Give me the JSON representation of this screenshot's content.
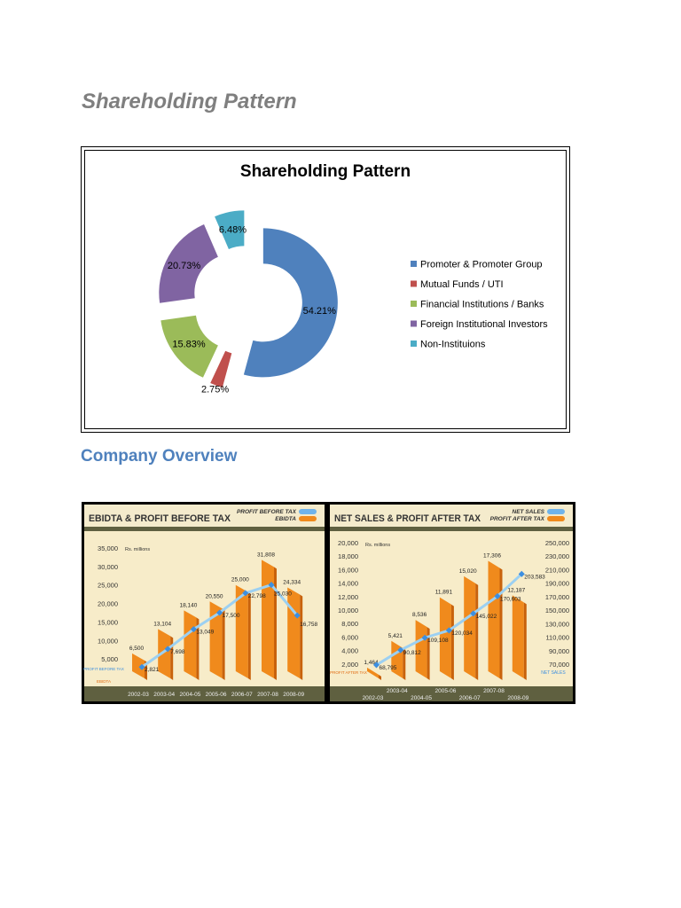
{
  "page": {
    "heading": "Shareholding Pattern",
    "section_heading": "Company Overview"
  },
  "chart_data": [
    {
      "type": "pie",
      "variant": "exploded-donut",
      "title": "Shareholding Pattern",
      "legend_position": "right",
      "categories": [
        "Promoter & Promoter Group",
        "Mutual Funds / UTI",
        "Financial Institutions / Banks",
        "Foreign Institutional Investors",
        "Non-Instituions"
      ],
      "values": [
        54.21,
        2.75,
        15.83,
        20.73,
        6.48
      ],
      "labels": [
        "54.21%",
        "2.75%",
        "15.83%",
        "20.73%",
        "6.48%"
      ],
      "colors": [
        "#4f81bd",
        "#c0504d",
        "#9bbb59",
        "#8064a2",
        "#4bacc6"
      ]
    },
    {
      "type": "bar",
      "title": "EBIDTA & PROFIT BEFORE TAX",
      "unit_note": "Rs. millions",
      "categories": [
        "2002-03",
        "2003-04",
        "2004-05",
        "2005-06",
        "2006-07",
        "2007-08",
        "2008-09"
      ],
      "y_ticks": [
        "35,000",
        "30,000",
        "25,000",
        "20,000",
        "15,000",
        "10,000",
        "5,000"
      ],
      "ylim": [
        0,
        35000
      ],
      "legend_position": "top-right",
      "axis_series_labels": {
        "line": "PROFIT BEFORE TAX",
        "bar": "EBIDTA"
      },
      "series": [
        {
          "name": "EBIDTA",
          "kind": "bar",
          "color": "#f08a1c",
          "values": [
            6500,
            13104,
            18140,
            20550,
            25000,
            31808,
            24334
          ],
          "labels": [
            "6,500",
            "13,104",
            "18,140",
            "20,550",
            "25,000",
            "31,808",
            "24,334"
          ]
        },
        {
          "name": "PROFIT BEFORE TAX",
          "kind": "line",
          "color": "#6fb3ea",
          "values": [
            2821,
            7698,
            13049,
            17500,
            22798,
            25030,
            16758
          ],
          "labels": [
            "2,821",
            "7,698",
            "13,049",
            "17,500",
            "22,798",
            "25,030",
            "16,758"
          ]
        }
      ]
    },
    {
      "type": "bar",
      "title": "NET SALES & PROFIT AFTER TAX",
      "unit_note": "Rs. millions",
      "categories": [
        "2002-03",
        "2003-04",
        "2004-05",
        "2005-06",
        "2006-07",
        "2007-08",
        "2008-09"
      ],
      "y_ticks": [
        "20,000",
        "18,000",
        "16,000",
        "14,000",
        "12,000",
        "10,000",
        "8,000",
        "6,000",
        "4,000",
        "2,000"
      ],
      "y2_ticks": [
        "250,000",
        "230,000",
        "210,000",
        "190,000",
        "170,000",
        "150,000",
        "130,000",
        "110,000",
        "90,000",
        "70,000"
      ],
      "ylim": [
        0,
        20000
      ],
      "y2lim": [
        70000,
        250000
      ],
      "legend_position": "top-right",
      "axis_series_labels": {
        "line": "NET SALES",
        "bar": "PROFIT AFTER TAX"
      },
      "series": [
        {
          "name": "PROFIT AFTER TAX",
          "kind": "bar",
          "color": "#f08a1c",
          "values": [
            1464,
            5421,
            8536,
            11891,
            15020,
            17306,
            12187
          ],
          "labels": [
            "1,464",
            "5,421",
            "8,536",
            "11,891",
            "15,020",
            "17,306",
            "12,187"
          ]
        },
        {
          "name": "NET SALES",
          "kind": "line",
          "axis": "right",
          "color": "#6fb3ea",
          "values": [
            68795,
            90812,
            109108,
            120034,
            145022,
            170603,
            203583
          ],
          "labels": [
            "68,795",
            "90,812",
            "109,108",
            "120,034",
            "145,022",
            "170,603",
            "203,583"
          ]
        }
      ]
    }
  ]
}
